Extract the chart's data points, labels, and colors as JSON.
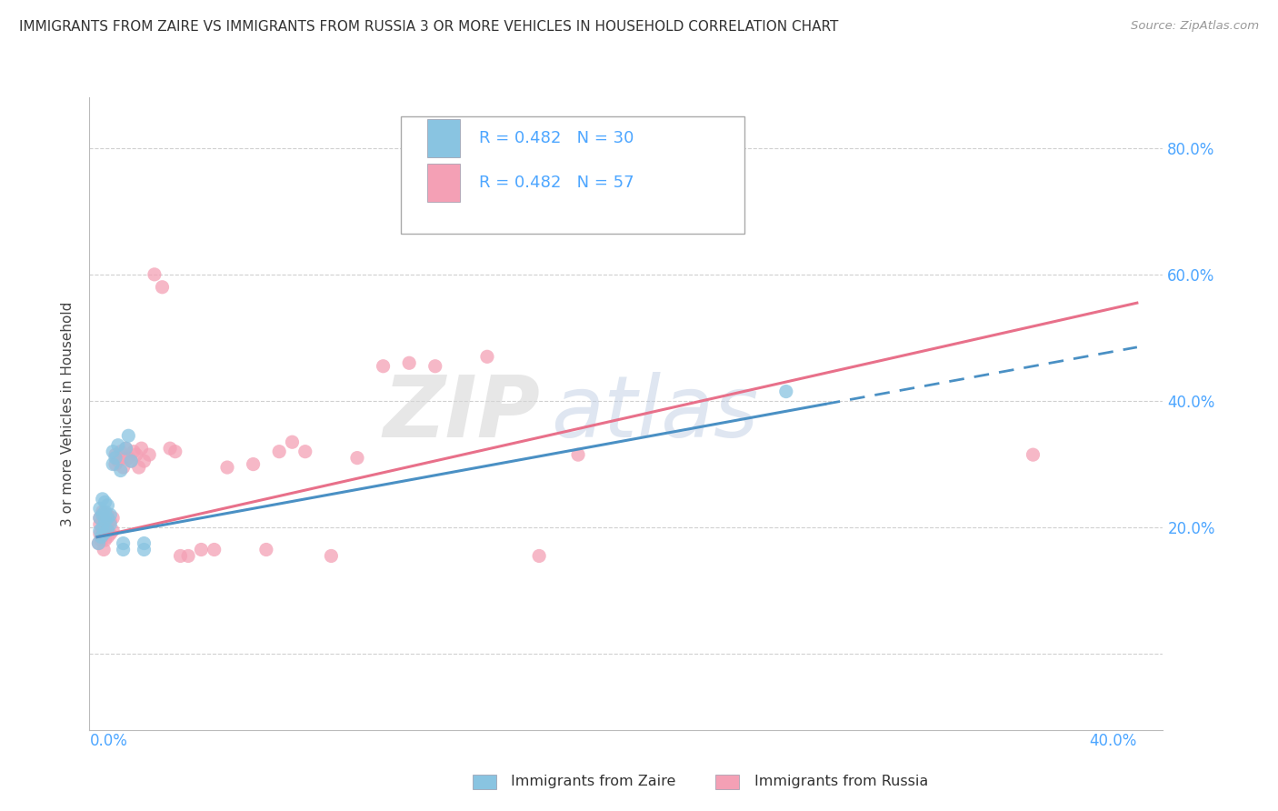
{
  "title": "IMMIGRANTS FROM ZAIRE VS IMMIGRANTS FROM RUSSIA 3 OR MORE VEHICLES IN HOUSEHOLD CORRELATION CHART",
  "source": "Source: ZipAtlas.com",
  "ylabel": "3 or more Vehicles in Household",
  "y_ticks": [
    0.0,
    0.2,
    0.4,
    0.6,
    0.8
  ],
  "y_tick_labels": [
    "",
    "20.0%",
    "40.0%",
    "60.0%",
    "80.0%"
  ],
  "x_lim": [
    -0.003,
    0.41
  ],
  "y_lim": [
    -0.12,
    0.88
  ],
  "zaire_R": "0.482",
  "zaire_N": "30",
  "russia_R": "0.482",
  "russia_N": "57",
  "zaire_color": "#89c4e1",
  "russia_color": "#f4a0b5",
  "zaire_line_color": "#4a90c4",
  "russia_line_color": "#e8708a",
  "zaire_scatter": [
    [
      0.0005,
      0.175
    ],
    [
      0.001,
      0.195
    ],
    [
      0.001,
      0.215
    ],
    [
      0.001,
      0.23
    ],
    [
      0.0015,
      0.185
    ],
    [
      0.002,
      0.2
    ],
    [
      0.002,
      0.22
    ],
    [
      0.002,
      0.245
    ],
    [
      0.0025,
      0.19
    ],
    [
      0.003,
      0.21
    ],
    [
      0.003,
      0.225
    ],
    [
      0.003,
      0.24
    ],
    [
      0.004,
      0.195
    ],
    [
      0.004,
      0.215
    ],
    [
      0.004,
      0.235
    ],
    [
      0.005,
      0.205
    ],
    [
      0.005,
      0.22
    ],
    [
      0.006,
      0.3
    ],
    [
      0.006,
      0.32
    ],
    [
      0.007,
      0.31
    ],
    [
      0.008,
      0.33
    ],
    [
      0.009,
      0.29
    ],
    [
      0.01,
      0.165
    ],
    [
      0.01,
      0.175
    ],
    [
      0.011,
      0.325
    ],
    [
      0.012,
      0.345
    ],
    [
      0.013,
      0.305
    ],
    [
      0.018,
      0.165
    ],
    [
      0.018,
      0.175
    ],
    [
      0.265,
      0.415
    ]
  ],
  "russia_scatter": [
    [
      0.0005,
      0.175
    ],
    [
      0.001,
      0.19
    ],
    [
      0.001,
      0.205
    ],
    [
      0.001,
      0.215
    ],
    [
      0.0015,
      0.18
    ],
    [
      0.002,
      0.195
    ],
    [
      0.002,
      0.21
    ],
    [
      0.002,
      0.225
    ],
    [
      0.0025,
      0.165
    ],
    [
      0.003,
      0.18
    ],
    [
      0.003,
      0.2
    ],
    [
      0.003,
      0.215
    ],
    [
      0.004,
      0.185
    ],
    [
      0.004,
      0.2
    ],
    [
      0.004,
      0.22
    ],
    [
      0.005,
      0.19
    ],
    [
      0.005,
      0.21
    ],
    [
      0.006,
      0.195
    ],
    [
      0.006,
      0.215
    ],
    [
      0.007,
      0.3
    ],
    [
      0.007,
      0.315
    ],
    [
      0.008,
      0.305
    ],
    [
      0.009,
      0.32
    ],
    [
      0.01,
      0.295
    ],
    [
      0.01,
      0.31
    ],
    [
      0.011,
      0.325
    ],
    [
      0.012,
      0.31
    ],
    [
      0.013,
      0.305
    ],
    [
      0.014,
      0.32
    ],
    [
      0.015,
      0.315
    ],
    [
      0.016,
      0.295
    ],
    [
      0.017,
      0.325
    ],
    [
      0.018,
      0.305
    ],
    [
      0.02,
      0.315
    ],
    [
      0.022,
      0.6
    ],
    [
      0.025,
      0.58
    ],
    [
      0.028,
      0.325
    ],
    [
      0.03,
      0.32
    ],
    [
      0.032,
      0.155
    ],
    [
      0.035,
      0.155
    ],
    [
      0.04,
      0.165
    ],
    [
      0.045,
      0.165
    ],
    [
      0.05,
      0.295
    ],
    [
      0.06,
      0.3
    ],
    [
      0.065,
      0.165
    ],
    [
      0.07,
      0.32
    ],
    [
      0.075,
      0.335
    ],
    [
      0.08,
      0.32
    ],
    [
      0.09,
      0.155
    ],
    [
      0.1,
      0.31
    ],
    [
      0.11,
      0.455
    ],
    [
      0.12,
      0.46
    ],
    [
      0.13,
      0.455
    ],
    [
      0.15,
      0.47
    ],
    [
      0.17,
      0.155
    ],
    [
      0.185,
      0.315
    ],
    [
      0.36,
      0.315
    ]
  ],
  "zaire_reg": [
    0.0,
    0.28,
    0.185,
    0.395
  ],
  "zaire_reg_dash": [
    0.28,
    0.4,
    0.395,
    0.45
  ],
  "russia_reg": [
    0.0,
    0.4,
    0.185,
    0.555
  ],
  "watermark_zip": "ZIP",
  "watermark_atlas": "atlas",
  "bg_color": "#ffffff",
  "grid_color": "#d0d0d0",
  "tick_color": "#4da6ff",
  "title_color": "#333333"
}
